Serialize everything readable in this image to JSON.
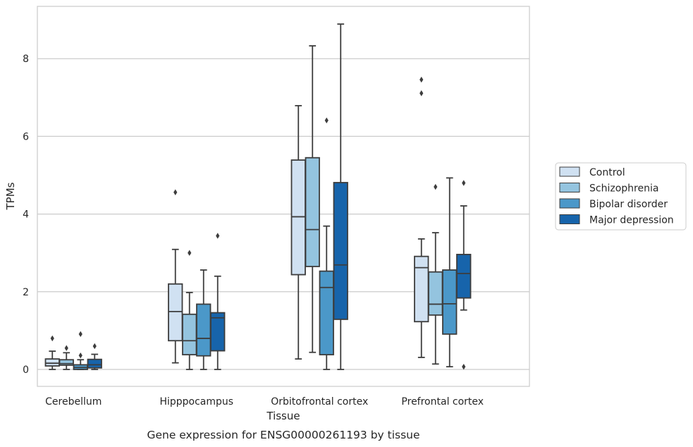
{
  "chart_data": {
    "type": "box",
    "title": "",
    "caption": "Gene expression for ENSG00000261193 by tissue",
    "xlabel": "Tissue",
    "ylabel": "TPMs",
    "ylim": [
      -0.43,
      9.35
    ],
    "yticks": [
      0,
      2,
      4,
      6,
      8
    ],
    "grid": "horizontal",
    "legend_position": "right",
    "categories": [
      "Cerebellum",
      "Hipppocampus",
      "Orbitofrontal cortex",
      "Prefrontal cortex"
    ],
    "series": [
      {
        "name": "Control",
        "color": "#d0e1f2",
        "boxes": [
          {
            "whislo": 0.0,
            "q1": 0.09,
            "med": 0.16,
            "q3": 0.27,
            "whishi": 0.47,
            "fliers": [
              0.8
            ]
          },
          {
            "whislo": 0.17,
            "q1": 0.74,
            "med": 1.49,
            "q3": 2.2,
            "whishi": 3.09,
            "fliers": [
              4.56
            ]
          },
          {
            "whislo": 0.27,
            "q1": 2.44,
            "med": 3.93,
            "q3": 5.39,
            "whishi": 6.79,
            "fliers": []
          },
          {
            "whislo": 0.31,
            "q1": 1.23,
            "med": 2.62,
            "q3": 2.91,
            "whishi": 3.36,
            "fliers": [
              7.11,
              7.46
            ]
          }
        ]
      },
      {
        "name": "Schizophrenia",
        "color": "#94c4df",
        "boxes": [
          {
            "whislo": 0.0,
            "q1": 0.11,
            "med": 0.15,
            "q3": 0.25,
            "whishi": 0.43,
            "fliers": [
              0.55
            ]
          },
          {
            "whislo": 0.0,
            "q1": 0.38,
            "med": 0.74,
            "q3": 1.42,
            "whishi": 1.98,
            "fliers": [
              3.0
            ]
          },
          {
            "whislo": 0.44,
            "q1": 2.65,
            "med": 3.6,
            "q3": 5.45,
            "whishi": 8.33,
            "fliers": []
          },
          {
            "whislo": 0.14,
            "q1": 1.4,
            "med": 1.68,
            "q3": 2.51,
            "whishi": 3.52,
            "fliers": [
              4.7
            ]
          }
        ]
      },
      {
        "name": "Bipolar disorder",
        "color": "#4b98c9",
        "boxes": [
          {
            "whislo": 0.0,
            "q1": 0.0,
            "med": 0.05,
            "q3": 0.12,
            "whishi": 0.25,
            "fliers": [
              0.36,
              0.91
            ]
          },
          {
            "whislo": 0.0,
            "q1": 0.35,
            "med": 0.8,
            "q3": 1.68,
            "whishi": 2.56,
            "fliers": []
          },
          {
            "whislo": 0.0,
            "q1": 0.38,
            "med": 2.11,
            "q3": 2.53,
            "whishi": 3.69,
            "fliers": [
              6.41
            ]
          },
          {
            "whislo": 0.07,
            "q1": 0.91,
            "med": 1.69,
            "q3": 2.56,
            "whishi": 4.93,
            "fliers": []
          }
        ]
      },
      {
        "name": "Major depression",
        "color": "#1764ab",
        "boxes": [
          {
            "whislo": 0.0,
            "q1": 0.04,
            "med": 0.12,
            "q3": 0.26,
            "whishi": 0.39,
            "fliers": [
              0.6
            ]
          },
          {
            "whislo": 0.0,
            "q1": 0.48,
            "med": 1.33,
            "q3": 1.46,
            "whishi": 2.4,
            "fliers": [
              3.44
            ]
          },
          {
            "whislo": 0.0,
            "q1": 1.29,
            "med": 2.69,
            "q3": 4.81,
            "whishi": 8.89,
            "fliers": []
          },
          {
            "whislo": 1.53,
            "q1": 1.84,
            "med": 2.47,
            "q3": 2.96,
            "whishi": 4.21,
            "fliers": [
              0.07,
              4.8
            ]
          }
        ]
      }
    ]
  }
}
